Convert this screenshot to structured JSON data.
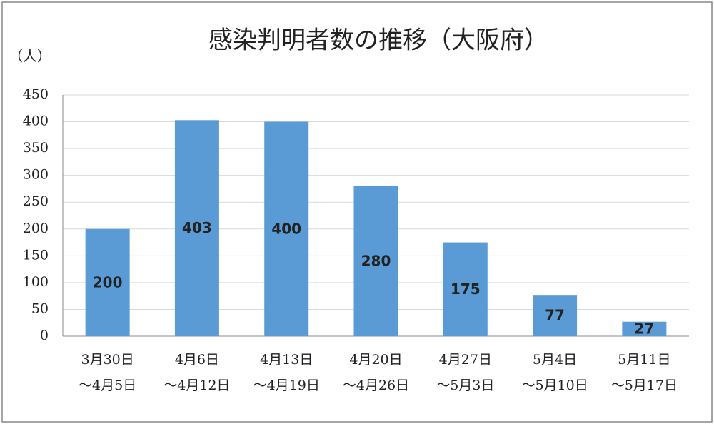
{
  "chart_data": {
    "type": "bar",
    "title": "感染判明者数の推移（大阪府）",
    "y_label": "（人）",
    "categories": [
      [
        "3月30日",
        "～4月5日"
      ],
      [
        "4月6日",
        "～4月12日"
      ],
      [
        "4月13日",
        "～4月19日"
      ],
      [
        "4月20日",
        "～4月26日"
      ],
      [
        "4月27日",
        "～5月3日"
      ],
      [
        "5月4日",
        "～5月10日"
      ],
      [
        "5月11日",
        "～5月17日"
      ]
    ],
    "values": [
      200,
      403,
      400,
      280,
      175,
      77,
      27
    ],
    "color": "#5b9bd5",
    "ylim": [
      0,
      450
    ],
    "yticks": [
      0,
      50,
      100,
      150,
      200,
      250,
      300,
      350,
      400,
      450
    ],
    "grid": true
  }
}
